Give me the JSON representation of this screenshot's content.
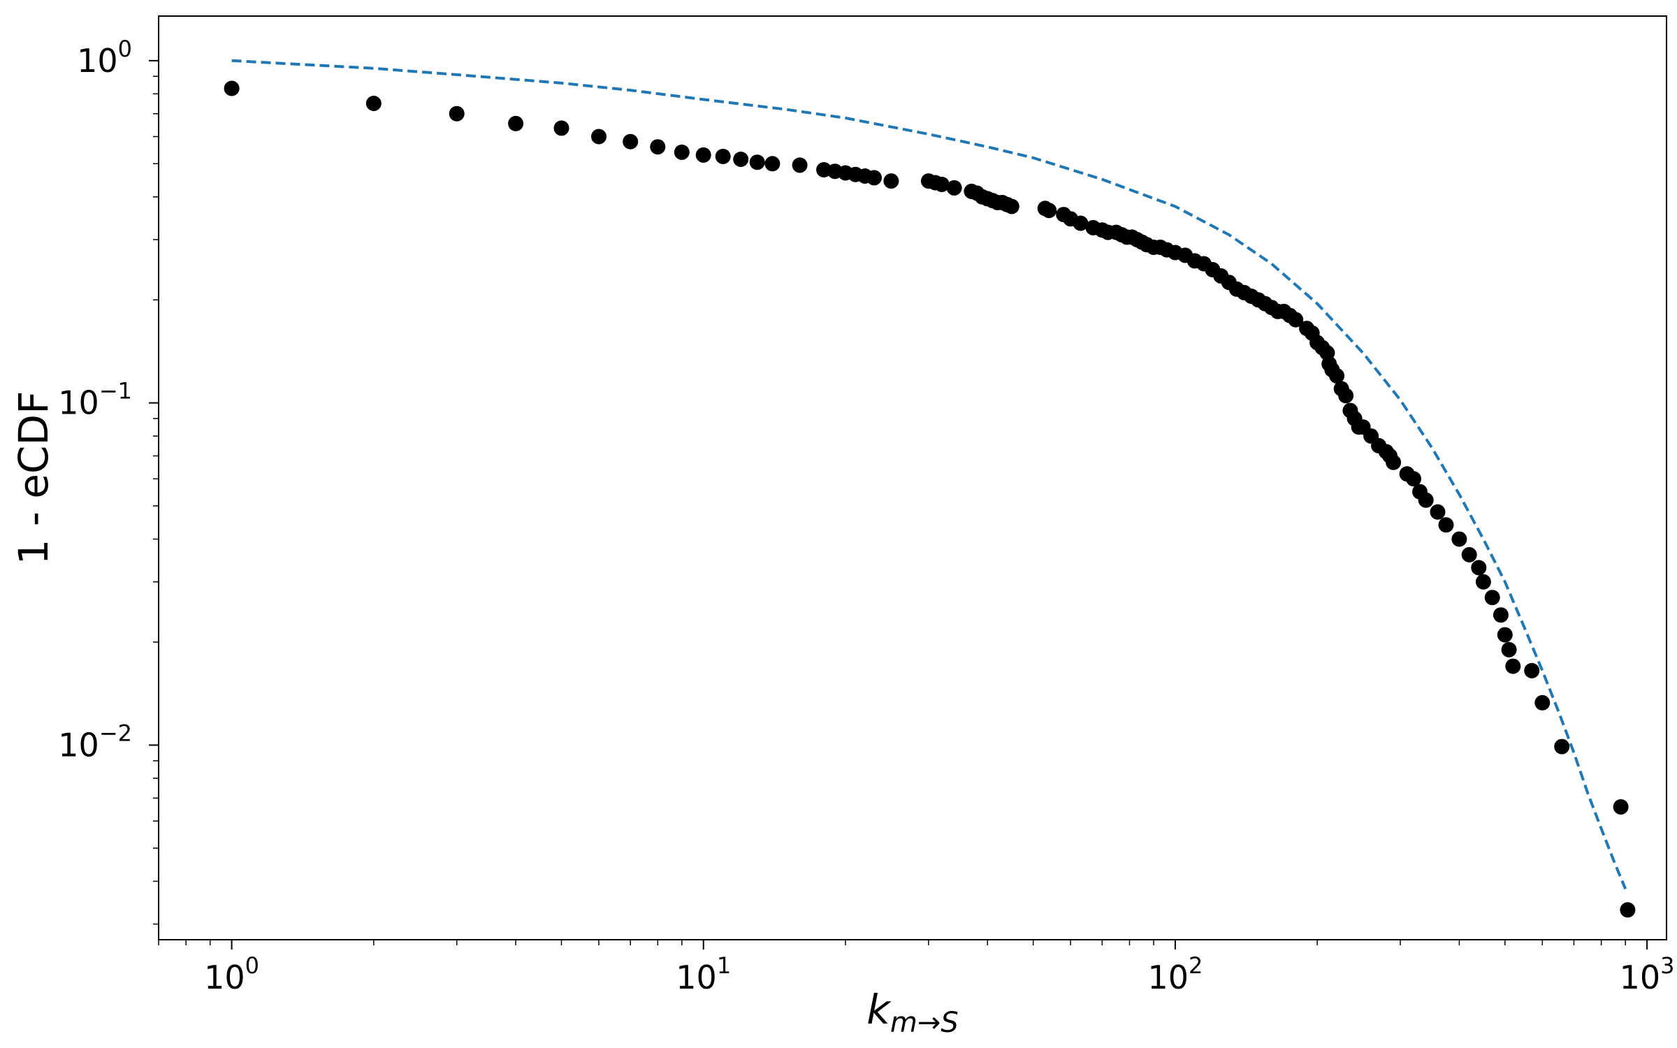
{
  "chart_data": {
    "type": "scatter",
    "title": "",
    "xlabel": {
      "base": "k",
      "sub": "m→S"
    },
    "ylabel": "1 - eCDF",
    "xscale": "log",
    "yscale": "log",
    "xlim": [
      0.7,
      1100
    ],
    "ylim": [
      0.0027,
      1.35
    ],
    "grid": false,
    "x_ticks": [
      {
        "value": 1,
        "base": "10",
        "exp": "0"
      },
      {
        "value": 10,
        "base": "10",
        "exp": "1"
      },
      {
        "value": 100,
        "base": "10",
        "exp": "2"
      },
      {
        "value": 1000,
        "base": "10",
        "exp": "3"
      }
    ],
    "y_ticks": [
      {
        "value": 1,
        "base": "10",
        "exp": "0"
      },
      {
        "value": 0.1,
        "base": "10",
        "exp": "−1"
      },
      {
        "value": 0.01,
        "base": "10",
        "exp": "−2"
      }
    ],
    "series": [
      {
        "type": "scatter",
        "color": "#000000",
        "x": [
          1,
          2,
          3,
          4,
          5,
          6,
          7,
          8,
          9,
          10,
          11,
          12,
          13,
          14,
          16,
          18,
          19,
          20,
          21,
          22,
          23,
          25,
          30,
          31,
          32,
          34,
          37,
          38,
          39,
          40,
          41,
          42,
          43,
          44,
          45,
          53,
          54,
          58,
          60,
          63,
          67,
          70,
          72,
          75,
          77,
          79,
          81,
          83,
          85,
          87,
          90,
          93,
          96,
          100,
          105,
          110,
          115,
          120,
          125,
          130,
          135,
          140,
          145,
          150,
          155,
          160,
          165,
          170,
          175,
          180,
          190,
          195,
          200,
          205,
          210,
          212,
          215,
          220,
          225,
          230,
          235,
          240,
          245,
          250,
          260,
          270,
          280,
          285,
          290,
          310,
          320,
          330,
          340,
          360,
          375,
          400,
          420,
          440,
          450,
          470,
          490,
          500,
          510,
          520,
          570,
          600,
          660,
          880,
          910
        ],
        "y": [
          0.83,
          0.75,
          0.7,
          0.655,
          0.635,
          0.6,
          0.58,
          0.56,
          0.54,
          0.53,
          0.525,
          0.515,
          0.505,
          0.5,
          0.495,
          0.48,
          0.475,
          0.47,
          0.465,
          0.46,
          0.455,
          0.445,
          0.445,
          0.44,
          0.435,
          0.425,
          0.415,
          0.41,
          0.4,
          0.395,
          0.39,
          0.385,
          0.385,
          0.38,
          0.375,
          0.37,
          0.365,
          0.355,
          0.345,
          0.335,
          0.325,
          0.32,
          0.315,
          0.315,
          0.31,
          0.305,
          0.305,
          0.3,
          0.295,
          0.29,
          0.285,
          0.285,
          0.28,
          0.275,
          0.27,
          0.26,
          0.255,
          0.245,
          0.235,
          0.225,
          0.215,
          0.21,
          0.205,
          0.2,
          0.195,
          0.19,
          0.185,
          0.185,
          0.18,
          0.175,
          0.165,
          0.16,
          0.15,
          0.145,
          0.14,
          0.13,
          0.125,
          0.12,
          0.11,
          0.105,
          0.095,
          0.09,
          0.085,
          0.085,
          0.08,
          0.075,
          0.072,
          0.07,
          0.067,
          0.062,
          0.06,
          0.055,
          0.052,
          0.048,
          0.044,
          0.04,
          0.036,
          0.033,
          0.03,
          0.027,
          0.024,
          0.021,
          0.019,
          0.017,
          0.0165,
          0.0133,
          0.0099,
          0.0066,
          0.0033
        ]
      },
      {
        "type": "line",
        "style": "dashed",
        "color": "#1f77b4",
        "x": [
          1,
          2,
          3,
          5,
          7,
          10,
          15,
          20,
          30,
          40,
          50,
          70,
          100,
          130,
          160,
          200,
          250,
          300,
          350,
          400,
          450,
          500,
          550,
          600,
          650,
          700,
          750,
          800,
          850,
          900
        ],
        "y": [
          1.0,
          0.95,
          0.91,
          0.86,
          0.82,
          0.77,
          0.72,
          0.68,
          0.61,
          0.56,
          0.52,
          0.45,
          0.375,
          0.31,
          0.255,
          0.195,
          0.14,
          0.102,
          0.074,
          0.054,
          0.04,
          0.03,
          0.022,
          0.0165,
          0.0125,
          0.0095,
          0.0072,
          0.0057,
          0.0046,
          0.0038
        ]
      }
    ]
  }
}
